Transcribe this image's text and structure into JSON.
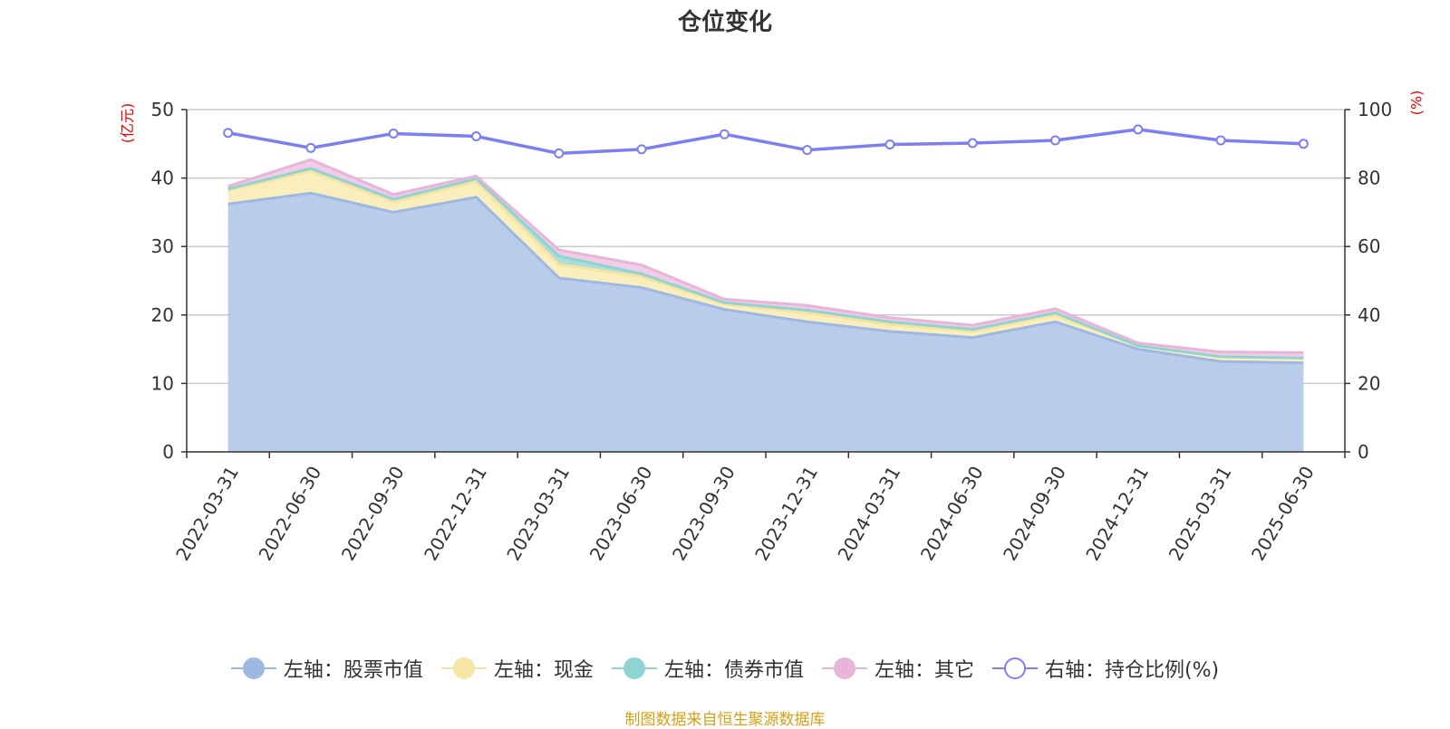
{
  "title": "仓位变化",
  "left_axis_unit": "(亿元)",
  "right_axis_unit": "(%)",
  "source": "制图数据来自恒生聚源数据库",
  "chart_data": {
    "type": "area",
    "categories": [
      "2022-03-31",
      "2022-06-30",
      "2022-09-30",
      "2022-12-31",
      "2023-03-31",
      "2023-06-30",
      "2023-09-30",
      "2023-12-31",
      "2024-03-31",
      "2024-06-30",
      "2024-09-30",
      "2024-12-31",
      "2025-03-31",
      "2025-06-30"
    ],
    "left_axis": {
      "ylim": [
        0,
        50
      ],
      "ticks": [
        0,
        10,
        20,
        30,
        40,
        50
      ]
    },
    "right_axis": {
      "ylim": [
        0,
        100
      ],
      "ticks": [
        0,
        20,
        40,
        60,
        80,
        100
      ]
    },
    "series": [
      {
        "name": "左轴：股票市值",
        "axis": "left",
        "type": "stacked-area",
        "color": "#9db8e2",
        "fill": "#b9cdea",
        "values": [
          36.2,
          37.8,
          35.0,
          37.2,
          25.4,
          24.0,
          20.8,
          19.0,
          17.6,
          16.7,
          19.0,
          15.0,
          13.2,
          13.0
        ]
      },
      {
        "name": "左轴：现金",
        "axis": "left",
        "type": "stacked-area",
        "color": "#f5e3a0",
        "fill": "#fbeebd",
        "values": [
          2.0,
          3.2,
          1.5,
          2.3,
          2.0,
          1.6,
          0.8,
          1.3,
          1.0,
          0.9,
          1.0,
          0.5,
          0.7,
          0.7
        ]
      },
      {
        "name": "左轴：债券市值",
        "axis": "left",
        "type": "stacked-area",
        "color": "#8fd3d3",
        "fill": "#a9dedd",
        "values": [
          0.2,
          0.4,
          0.4,
          0.4,
          1.2,
          0.4,
          0.2,
          0.4,
          0.4,
          0.3,
          0.3,
          0.0,
          0.0,
          0.0
        ]
      },
      {
        "name": "左轴：其它",
        "axis": "left",
        "type": "stacked-area",
        "color": "#e7b5da",
        "fill": "#f0cce6",
        "values": [
          0.4,
          1.3,
          0.7,
          0.4,
          0.9,
          1.3,
          0.5,
          0.7,
          0.6,
          0.6,
          0.6,
          0.4,
          0.7,
          0.8
        ]
      },
      {
        "name": "右轴：持仓比例(%)",
        "axis": "right",
        "type": "line",
        "color": "#7b7ff0",
        "values": [
          93.2,
          88.8,
          93.0,
          92.2,
          87.2,
          88.4,
          92.8,
          88.2,
          89.8,
          90.2,
          91.0,
          94.2,
          91.0,
          90.0
        ]
      }
    ],
    "legend_position": "bottom",
    "grid": true
  }
}
